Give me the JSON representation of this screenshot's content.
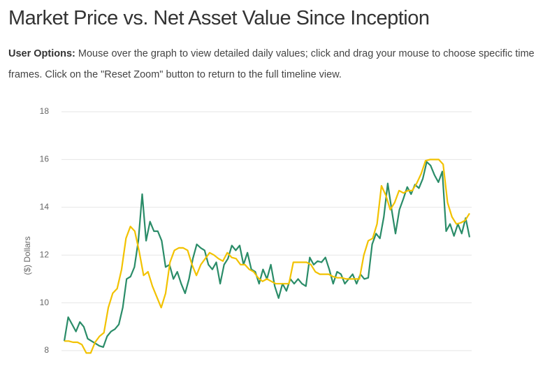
{
  "chart_data": {
    "type": "line",
    "title": "Market Price vs. Net Asset Value Since Inception",
    "ylabel": "($) Dollars",
    "ylim": [
      8,
      18
    ],
    "yticks": [
      8,
      10,
      12,
      14,
      16,
      18
    ],
    "grid": true,
    "series": [
      {
        "color": "#2a8c68",
        "values": [
          8.4,
          9.4,
          9.1,
          8.8,
          9.2,
          9.0,
          8.5,
          8.4,
          8.3,
          8.2,
          8.15,
          8.6,
          8.8,
          8.9,
          9.1,
          9.8,
          11.0,
          11.1,
          11.5,
          12.6,
          14.55,
          12.6,
          13.4,
          13.0,
          13.0,
          12.6,
          11.5,
          11.6,
          11.0,
          11.3,
          10.8,
          10.4,
          11.0,
          11.85,
          12.45,
          12.3,
          12.2,
          11.6,
          11.4,
          11.7,
          10.8,
          11.6,
          11.85,
          12.4,
          12.2,
          12.4,
          11.6,
          12.1,
          11.4,
          11.3,
          10.8,
          11.4,
          11.0,
          11.6,
          10.7,
          10.2,
          10.8,
          10.5,
          11.0,
          10.8,
          11.0,
          10.8,
          10.7,
          11.9,
          11.6,
          11.75,
          11.7,
          11.9,
          11.4,
          10.8,
          11.3,
          11.2,
          10.8,
          11.0,
          11.2,
          10.8,
          11.2,
          11.0,
          11.05,
          12.45,
          12.9,
          12.7,
          13.6,
          15.0,
          13.9,
          12.9,
          13.9,
          14.35,
          14.85,
          14.55,
          14.95,
          14.8,
          15.2,
          15.9,
          15.75,
          15.35,
          15.05,
          15.5,
          13.0,
          13.3,
          12.8,
          13.3,
          12.9,
          13.55,
          12.75
        ]
      },
      {
        "color": "#f2c200",
        "values": [
          8.4,
          8.4,
          8.35,
          8.35,
          8.25,
          7.9,
          7.9,
          8.35,
          8.6,
          8.75,
          9.8,
          10.4,
          10.6,
          11.4,
          12.7,
          13.2,
          13.0,
          12.15,
          11.15,
          11.3,
          10.7,
          10.25,
          9.8,
          10.4,
          11.7,
          12.2,
          12.3,
          12.3,
          12.2,
          11.6,
          11.15,
          11.6,
          11.85,
          12.1,
          12.0,
          11.85,
          11.75,
          12.1,
          11.9,
          11.85,
          11.6,
          11.6,
          11.4,
          11.3,
          11.05,
          10.9,
          11.0,
          10.9,
          10.8,
          10.8,
          10.8,
          10.8,
          11.7,
          11.7,
          11.7,
          11.7,
          11.6,
          11.3,
          11.2,
          11.2,
          11.2,
          11.1,
          11.05,
          11.05,
          11.0,
          11.0,
          11.0,
          11.0,
          12.0,
          12.6,
          12.7,
          13.3,
          14.9,
          14.5,
          13.9,
          14.2,
          14.7,
          14.6,
          14.7,
          14.7,
          15.0,
          15.4,
          15.95,
          16.0,
          16.0,
          16.0,
          15.8,
          14.2,
          13.6,
          13.3,
          13.35,
          13.45,
          13.75
        ]
      }
    ]
  },
  "user_options": {
    "label": "User Options:",
    "text": "Mouse over the graph to view detailed daily values; click and drag your mouse to choose specific time frames. Click on the \"Reset Zoom\" button to return to the full timeline view."
  }
}
